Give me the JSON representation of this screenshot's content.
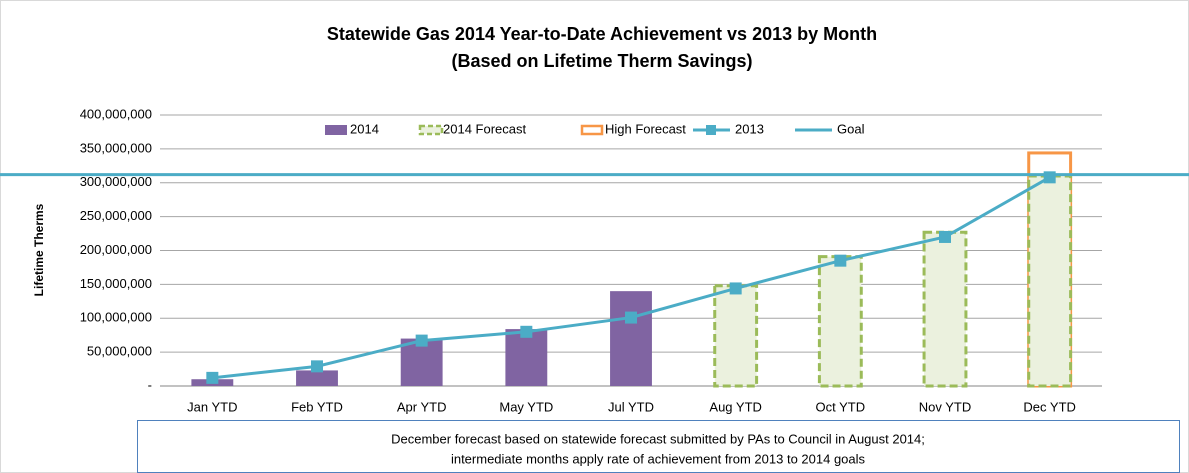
{
  "chart_data": {
    "type": "combo",
    "title": "Statewide Gas 2014 Year-to-Date Achievement vs 2013 by Month",
    "subtitle": "(Based on Lifetime Therm Savings)",
    "y_label": "Lifetime Therms",
    "note": [
      "December forecast based on statewide forecast submitted by PAs to Council in August 2014;",
      "intermediate months apply rate of achievement from 2013 to 2014 goals"
    ],
    "categories": [
      "Jan YTD",
      "Feb YTD",
      "Apr YTD",
      "May YTD",
      "Jul YTD",
      "Aug YTD",
      "Oct YTD",
      "Nov YTD",
      "Dec YTD"
    ],
    "series": [
      {
        "name": "2014",
        "kind": "bar",
        "color": "#8064a2",
        "values": [
          10000000,
          23000000,
          70000000,
          84000000,
          140000000,
          null,
          null,
          null,
          null
        ]
      },
      {
        "name": "2014 Forecast",
        "kind": "dashed-bar",
        "color": "#9bbb59",
        "values": [
          null,
          null,
          null,
          null,
          null,
          148000000,
          191000000,
          227000000,
          310000000
        ]
      },
      {
        "name": "High Forecast",
        "kind": "outline-bar",
        "color": "#f79646",
        "values": [
          null,
          null,
          null,
          null,
          null,
          null,
          null,
          null,
          344000000
        ]
      },
      {
        "name": "2013",
        "kind": "line",
        "color": "#4bacc6",
        "values": [
          12000000,
          29000000,
          67000000,
          80000000,
          101000000,
          144000000,
          185000000,
          220000000,
          308000000
        ]
      }
    ],
    "goal": {
      "name": "Goal",
      "color": "#4bacc6",
      "value": 312000000
    },
    "ylim": [
      0,
      400000000
    ],
    "yticks": [
      {
        "value": 0,
        "label": "-"
      },
      {
        "value": 50000000,
        "label": "50,000,000"
      },
      {
        "value": 100000000,
        "label": "100,000,000"
      },
      {
        "value": 150000000,
        "label": "150,000,000"
      },
      {
        "value": 200000000,
        "label": "200,000,000"
      },
      {
        "value": 250000000,
        "label": "250,000,000"
      },
      {
        "value": 300000000,
        "label": "300,000,000"
      },
      {
        "value": 350000000,
        "label": "350,000,000"
      },
      {
        "value": 400000000,
        "label": "400,000,000"
      }
    ],
    "grid": true
  }
}
